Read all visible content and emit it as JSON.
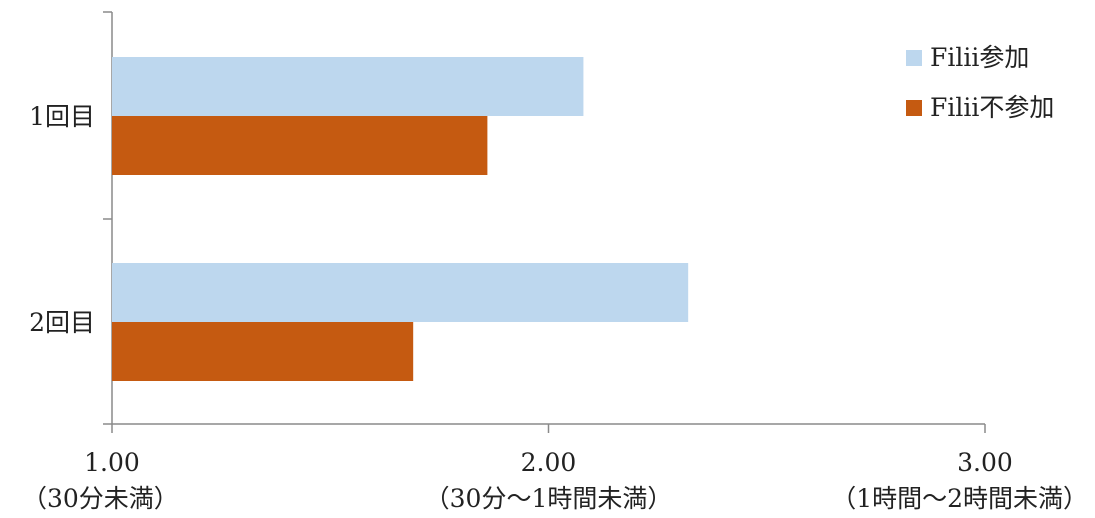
{
  "chart_data": {
    "type": "bar",
    "orientation": "horizontal",
    "categories": [
      "1回目",
      "2回目"
    ],
    "series": [
      {
        "name": "Filii参加",
        "color": "#bdd7ee",
        "values": [
          2.08,
          2.32
        ]
      },
      {
        "name": "Filii不参加",
        "color": "#c55a11",
        "values": [
          1.86,
          1.69
        ]
      }
    ],
    "xlim": [
      1.0,
      3.0
    ],
    "xticks": [
      {
        "value": 1.0,
        "label": "1.00",
        "sublabel": "（30分未満）"
      },
      {
        "value": 2.0,
        "label": "2.00",
        "sublabel": "（30分～1時間未満）"
      },
      {
        "value": 3.0,
        "label": "3.00",
        "sublabel": "（1時間～2時間未満）"
      }
    ],
    "grid": false,
    "legend_position": "top-right"
  }
}
